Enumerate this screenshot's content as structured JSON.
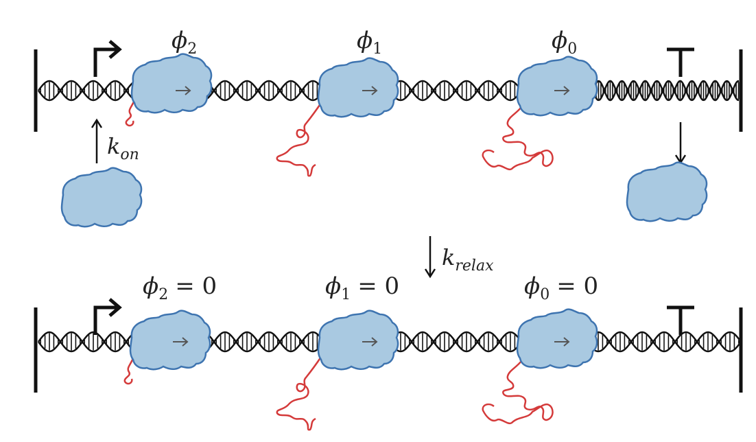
{
  "labels": {
    "top_phi": [
      {
        "sym": "ϕ",
        "sub": "2"
      },
      {
        "sym": "ϕ",
        "sub": "1"
      },
      {
        "sym": "ϕ",
        "sub": "0"
      }
    ],
    "bottom_phi": [
      {
        "sym": "ϕ",
        "sub": "2",
        "eq": "= 0"
      },
      {
        "sym": "ϕ",
        "sub": "1",
        "eq": "= 0"
      },
      {
        "sym": "ϕ",
        "sub": "0",
        "eq": "= 0"
      }
    ],
    "k_on": {
      "sym": "k",
      "sub": "on"
    },
    "k_relax": {
      "sym": "k",
      "sub": "relax"
    }
  },
  "colors": {
    "polymerase_fill": "#a9c9e1",
    "polymerase_stroke": "#3e74b0",
    "rna": "#d43a3a",
    "dna": "#111111",
    "direction_arrow": "#555555"
  },
  "icons": {
    "promoter": "promoter-arrow-icon",
    "terminator": "terminator-t-icon",
    "direction": "right-arrow-icon"
  }
}
